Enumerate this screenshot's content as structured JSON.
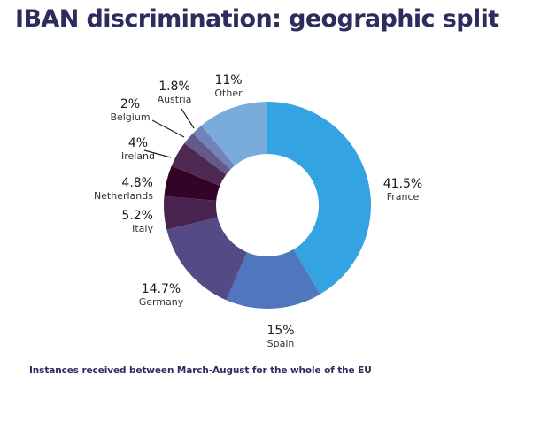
{
  "chart_data": {
    "type": "pie",
    "variant": "donut",
    "title": "IBAN discrimination: geographic split",
    "subtitle": "Instances received between March-August for the whole of the EU",
    "start": "12 o'clock",
    "direction": "clockwise",
    "unit": "%",
    "slices": [
      {
        "label": "France",
        "value": 41.5,
        "value_label": "41.5%",
        "color": "#34a3e2"
      },
      {
        "label": "Spain",
        "value": 15.0,
        "value_label": "15%",
        "color": "#5077bd"
      },
      {
        "label": "Germany",
        "value": 14.7,
        "value_label": "14.7%",
        "color": "#564a86"
      },
      {
        "label": "Italy",
        "value": 5.2,
        "value_label": "5.2%",
        "color": "#4a2250"
      },
      {
        "label": "Netherlands",
        "value": 4.8,
        "value_label": "4.8%",
        "color": "#340428"
      },
      {
        "label": "Ireland",
        "value": 4.0,
        "value_label": "4%",
        "color": "#4e2a52"
      },
      {
        "label": "Belgium",
        "value": 2.0,
        "value_label": "2%",
        "color": "#625a8c"
      },
      {
        "label": "Austria",
        "value": 1.8,
        "value_label": "1.8%",
        "color": "#7382b8"
      },
      {
        "label": "Other",
        "value": 11.0,
        "value_label": "11%",
        "color": "#79acdb"
      }
    ],
    "leader_lines_for": [
      "Ireland",
      "Belgium",
      "Austria"
    ]
  },
  "colors": {
    "title": "#2b2d5f",
    "background": "#ffffff"
  }
}
